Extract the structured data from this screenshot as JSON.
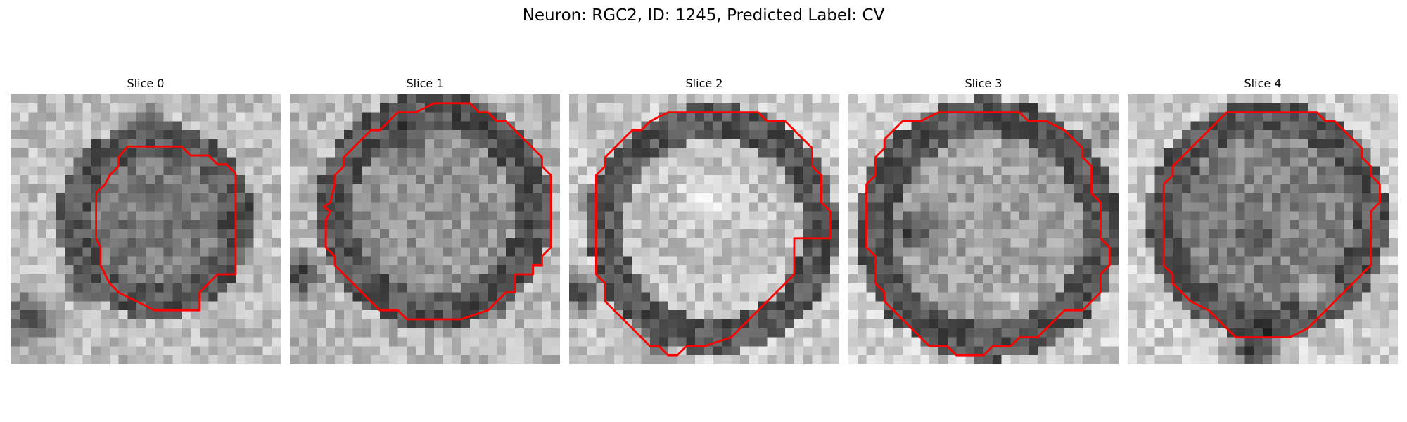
{
  "figure": {
    "title": "Neuron: RGC2, ID: 1245, Predicted Label: CV"
  },
  "colors": {
    "contour": "#ff0000",
    "background": "#ffffff"
  },
  "panels": [
    {
      "title": "Slice 0",
      "image": "grayscale-em-patch",
      "overlay": "red-contour"
    },
    {
      "title": "Slice 1",
      "image": "grayscale-em-patch",
      "overlay": "red-contour"
    },
    {
      "title": "Slice 2",
      "image": "grayscale-em-patch",
      "overlay": "red-contour"
    },
    {
      "title": "Slice 3",
      "image": "grayscale-em-patch",
      "overlay": "red-contour"
    },
    {
      "title": "Slice 4",
      "image": "grayscale-em-patch",
      "overlay": "red-contour"
    }
  ]
}
